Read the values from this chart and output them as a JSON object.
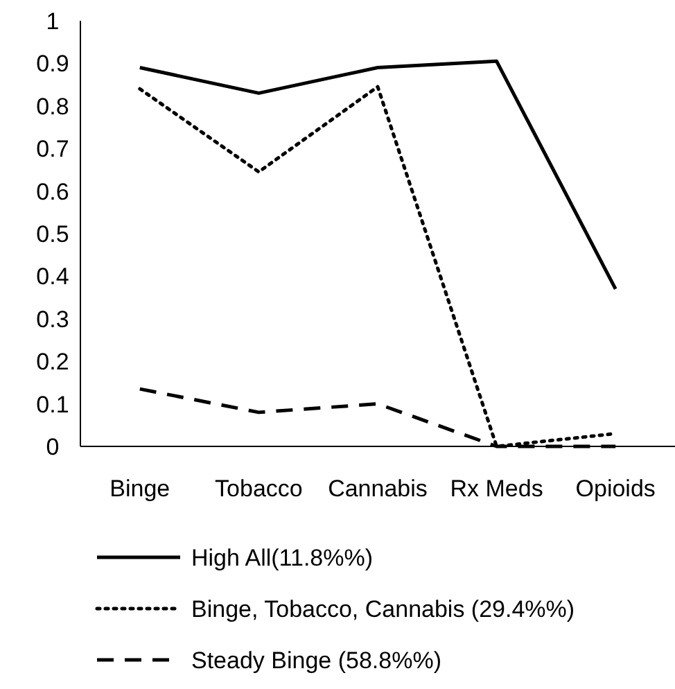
{
  "chart_data": {
    "type": "line",
    "categories": [
      "Binge",
      "Tobacco",
      "Cannabis",
      "Rx Meds",
      "Opioids"
    ],
    "series": [
      {
        "name": "High All(11.8%%)",
        "color": "#000000",
        "line_style": "solid",
        "values": [
          0.89,
          0.83,
          0.89,
          0.905,
          0.37
        ]
      },
      {
        "name": "Binge, Tobacco, Cannabis (29.4%%)",
        "color": "#000000",
        "line_style": "dotted",
        "values": [
          0.84,
          0.645,
          0.845,
          0,
          0.03
        ]
      },
      {
        "name": "Steady Binge (58.8%%)",
        "color": "#000000",
        "line_style": "dashed",
        "values": [
          0.135,
          0.08,
          0.1,
          0,
          0
        ]
      }
    ],
    "ylim": [
      0,
      1
    ],
    "yticks": [
      0,
      0.1,
      0.2,
      0.3,
      0.4,
      0.5,
      0.6,
      0.7,
      0.8,
      0.9,
      1
    ],
    "grid": false,
    "legend": "bottom",
    "marker": "none"
  }
}
